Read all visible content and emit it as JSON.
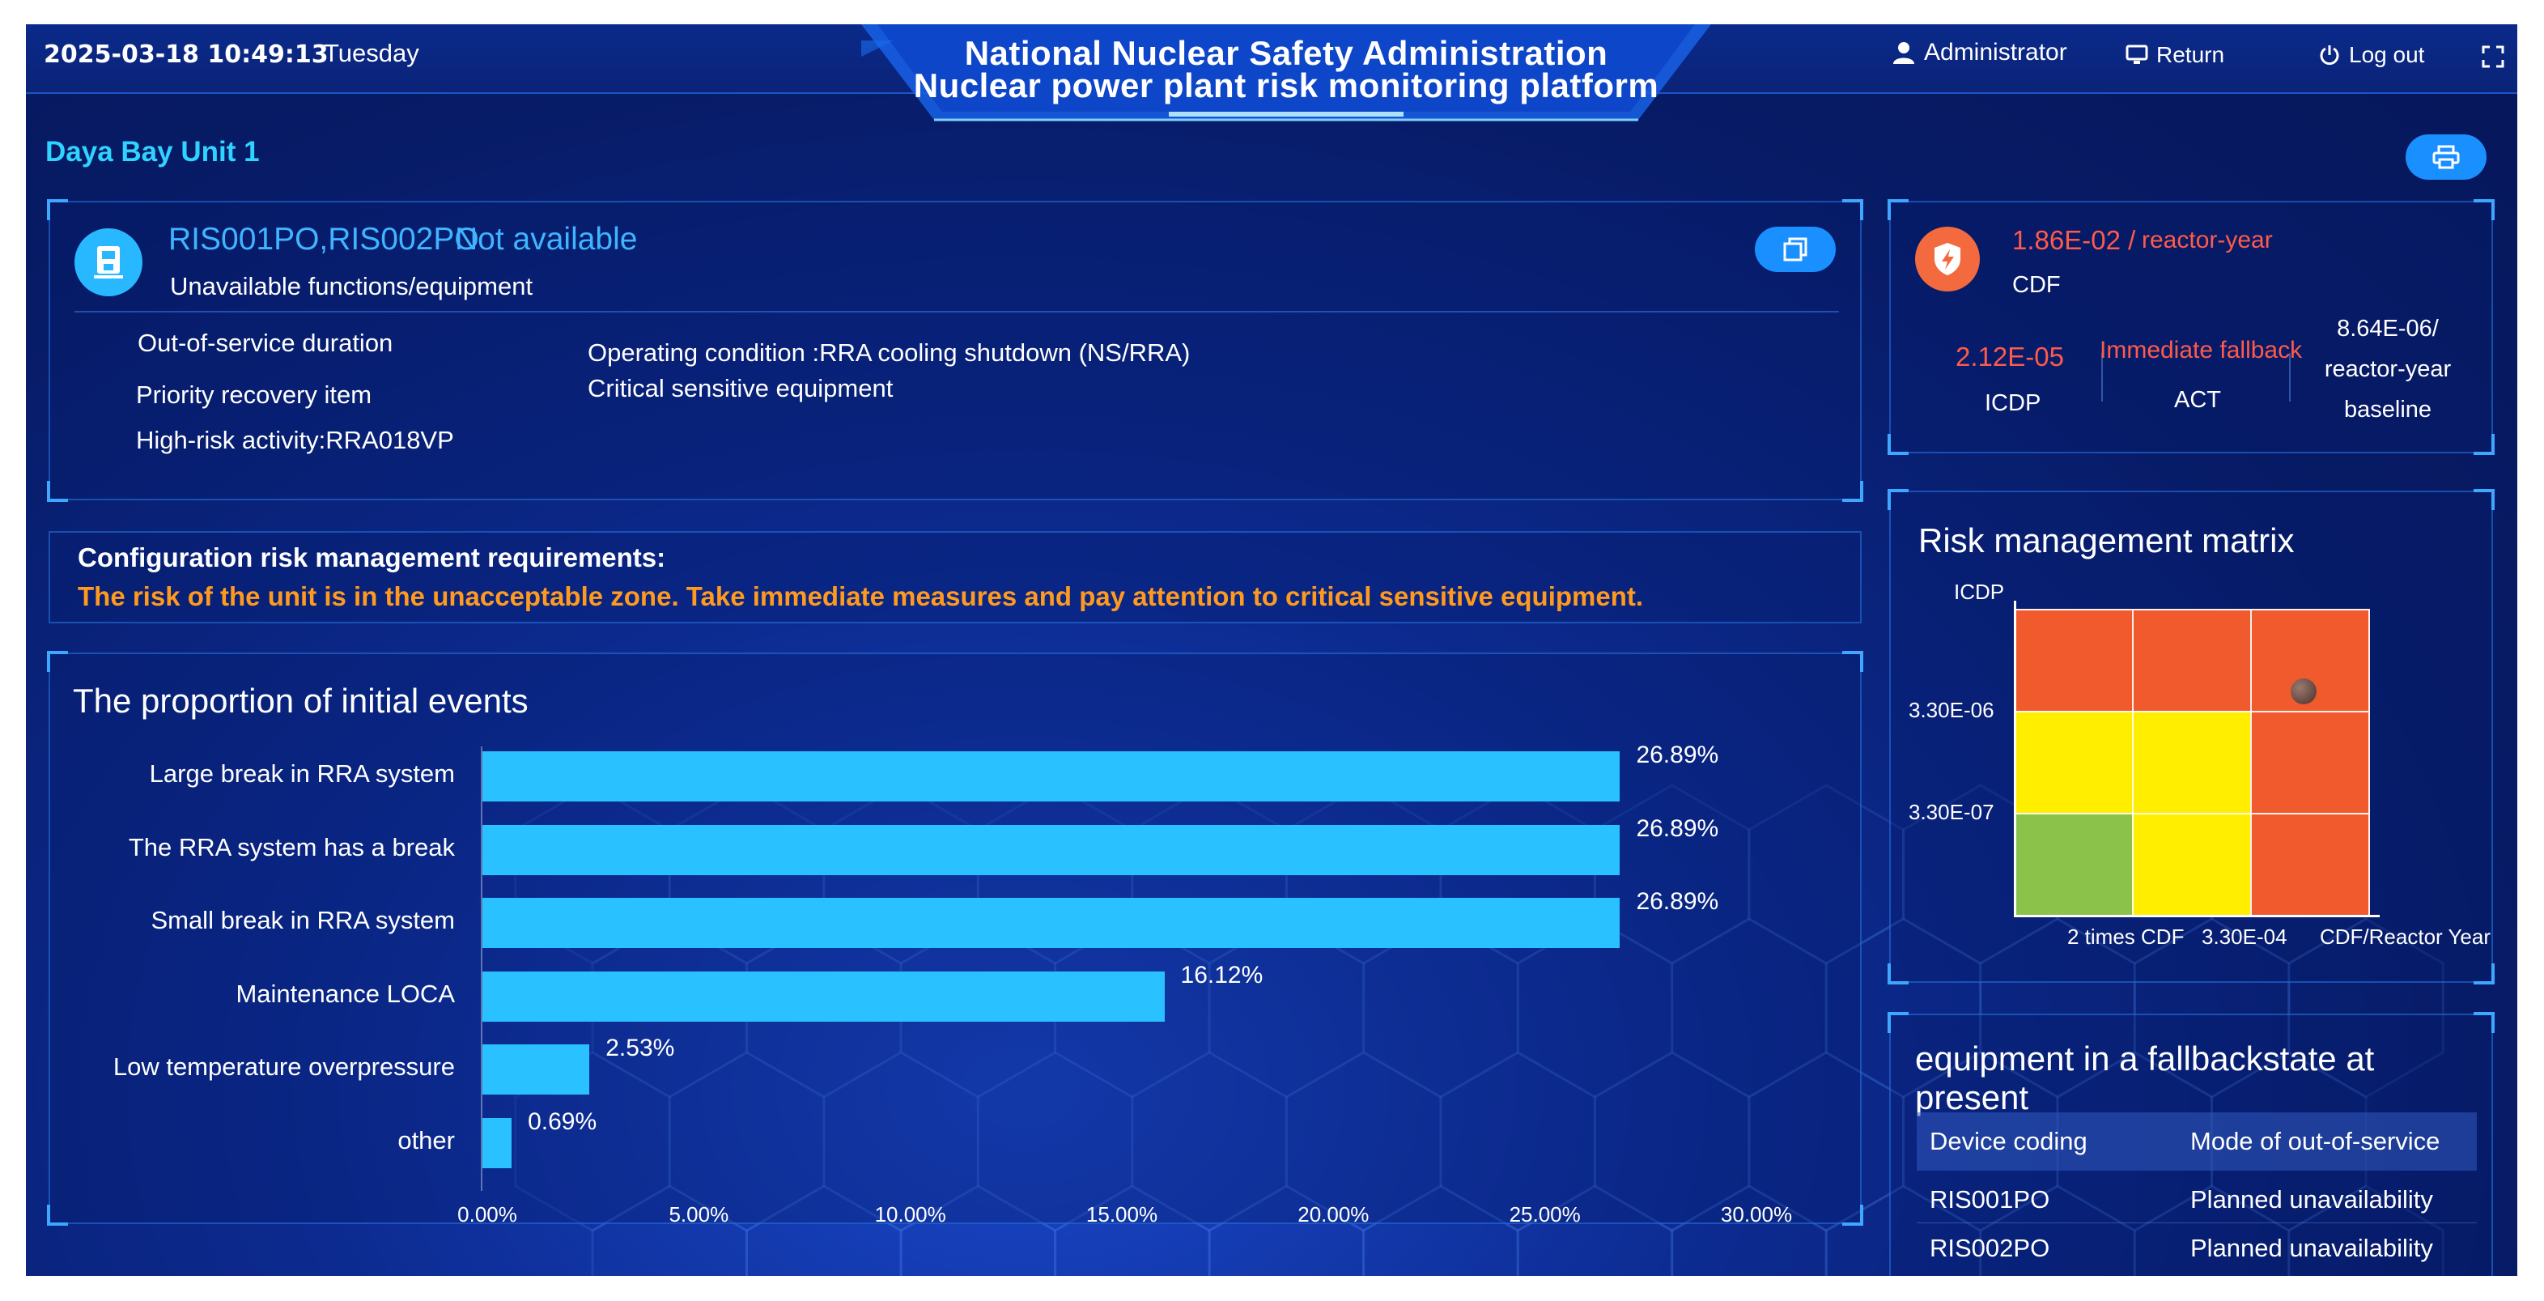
{
  "header": {
    "datetime": "2025-03-18 10:49:13",
    "weekday": "Tuesday",
    "title_line1": "National Nuclear Safety Administration",
    "title_line2": "Nuclear power plant risk monitoring platform",
    "user_label": "Administrator",
    "return_label": "Return",
    "logout_label": "Log out",
    "icons": {
      "user": "user-icon",
      "return": "monitor-icon",
      "logout": "power-icon",
      "fullscreen": "fullscreen-icon"
    }
  },
  "unit": {
    "name": "Daya Bay Unit 1"
  },
  "unavailable": {
    "codes": "RIS001PO,RIS002PO",
    "status": "Not available",
    "caption": "Unavailable functions/equipment",
    "out_of_service": "Out-of-service duration",
    "priority_recovery": "Priority recovery item",
    "high_risk": "High-risk activity:RRA018VP",
    "operating_condition": "Operating condition :RRA cooling shutdown (NS/RRA)",
    "critical_equipment": "Critical sensitive equipment"
  },
  "requirements": {
    "title": "Configuration risk management requirements:",
    "text": "The risk of the unit is in the unacceptable zone. Take immediate measures and pay attention to critical sensitive equipment."
  },
  "initial_events": {
    "title": "The proportion of initial events",
    "chart_data": {
      "type": "bar",
      "orientation": "horizontal",
      "categories": [
        "Large break in RRA system",
        "The RRA system has a break",
        "Small break in RRA system",
        "Maintenance LOCA",
        "Low temperature overpressure",
        "other"
      ],
      "values": [
        26.89,
        26.89,
        26.89,
        16.12,
        2.53,
        0.69
      ],
      "value_labels": [
        "26.89%",
        "26.89%",
        "26.89%",
        "16.12%",
        "2.53%",
        "0.69%"
      ],
      "xlim": [
        0,
        30
      ],
      "ticks": [
        0,
        5,
        10,
        15,
        20,
        25,
        30
      ],
      "tick_labels": [
        "0.00%",
        "5.00%",
        "10.00%",
        "15.00%",
        "20.00%",
        "25.00%",
        "30.00%"
      ],
      "bar_color": "#29c1ff"
    }
  },
  "risk": {
    "cdf_value": "1.86E-02 /",
    "cdf_unit": "reactor-year",
    "cdf_label": "CDF",
    "icdp_value": "2.12E-05",
    "icdp_label": "ICDP",
    "act_value": "Immediate fallback",
    "act_label": "ACT",
    "baseline_line1": "8.64E-06/",
    "baseline_line2": "reactor-year",
    "baseline_line3": "baseline"
  },
  "matrix": {
    "title": "Risk management matrix",
    "y_axis_label": "ICDP",
    "y_ticks": [
      "3.30E-06",
      "3.30E-07"
    ],
    "x_ticks": [
      "2 times CDF",
      "3.30E-04"
    ],
    "x_axis_label": "CDF/Reactor Year",
    "colors": {
      "red": "#f05a2c",
      "yellow": "#ffee00",
      "green": "#8bc34a"
    },
    "grid": [
      [
        "red",
        "red",
        "red"
      ],
      [
        "yellow",
        "yellow",
        "red"
      ],
      [
        "green",
        "yellow",
        "red"
      ]
    ],
    "marker": {
      "row": 0,
      "col": 2
    }
  },
  "fallback": {
    "title": "equipment in a fallbackstate at present",
    "columns": [
      "Device coding",
      "Mode of out-of-service"
    ],
    "rows": [
      [
        "RIS001PO",
        "Planned unavailability"
      ],
      [
        "RIS002PO",
        "Planned unavailability"
      ]
    ]
  }
}
